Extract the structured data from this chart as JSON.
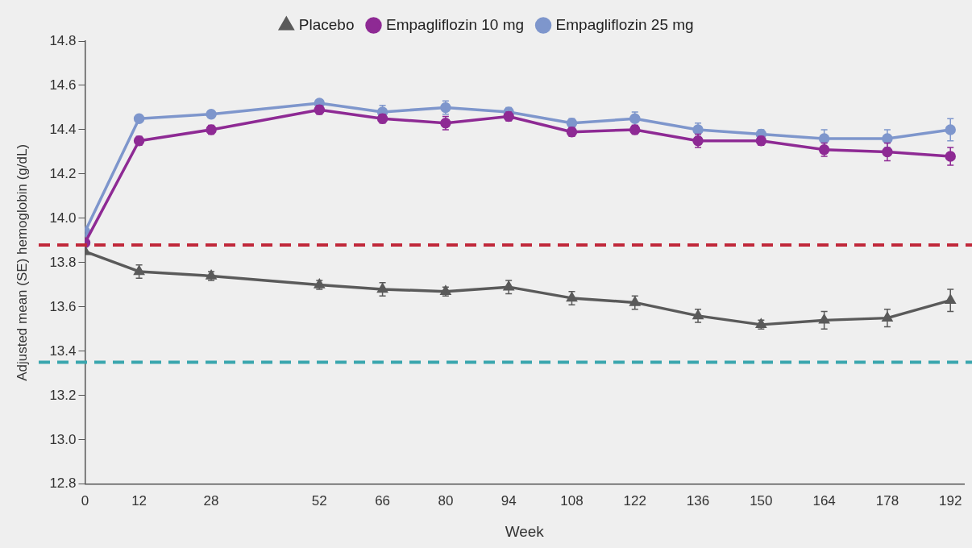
{
  "chart_data": {
    "type": "line",
    "xlabel": "Week",
    "ylabel": "Adjusted mean (SE) hemoglobin (g/dL)",
    "x": [
      0,
      12,
      28,
      52,
      66,
      80,
      94,
      108,
      122,
      136,
      150,
      164,
      178,
      192
    ],
    "xlim": [
      0,
      195
    ],
    "xticks": [
      0,
      12,
      28,
      52,
      66,
      80,
      94,
      108,
      122,
      136,
      150,
      164,
      178,
      192
    ],
    "ylim": [
      12.8,
      14.8
    ],
    "yticks": [
      12.8,
      {
        "value": 13,
        "label": "13.0"
      },
      13.2,
      13.4,
      13.6,
      13.8,
      {
        "value": 14,
        "label": "14.0"
      },
      14.2,
      14.4,
      14.6,
      14.8
    ],
    "series": [
      {
        "name": "Placebo",
        "color": "#5a5a5a",
        "marker": "triangle",
        "values": [
          13.85,
          13.76,
          13.74,
          13.7,
          13.68,
          13.67,
          13.69,
          13.64,
          13.62,
          13.56,
          13.52,
          13.54,
          13.55,
          13.63
        ],
        "errors": [
          null,
          0.03,
          0.02,
          0.02,
          0.03,
          0.02,
          0.03,
          0.03,
          0.03,
          0.03,
          0.02,
          0.04,
          0.04,
          0.05
        ]
      },
      {
        "name": "Empagliflozin 10 mg",
        "color": "#8e2a94",
        "marker": "circle",
        "values": [
          13.89,
          14.35,
          14.4,
          14.49,
          14.45,
          14.43,
          14.46,
          14.39,
          14.4,
          14.35,
          14.35,
          14.31,
          14.3,
          14.28
        ],
        "errors": [
          null,
          0.02,
          0.02,
          0.02,
          0.02,
          0.03,
          0.02,
          0.02,
          0.02,
          0.03,
          0.02,
          0.03,
          0.04,
          0.04
        ]
      },
      {
        "name": "Empagliflozin 25 mg",
        "color": "#7e96cc",
        "marker": "circle",
        "values": [
          13.94,
          14.45,
          14.47,
          14.52,
          14.48,
          14.5,
          14.48,
          14.43,
          14.45,
          14.4,
          14.38,
          14.36,
          14.36,
          14.4
        ],
        "errors": [
          null,
          null,
          null,
          null,
          0.03,
          0.03,
          0.02,
          0.02,
          0.03,
          0.03,
          0.02,
          0.04,
          0.04,
          0.05
        ]
      }
    ],
    "ref_lines": [
      {
        "axis": "y",
        "value": 13.88,
        "color": "#c0283a",
        "line_style": "dashed"
      },
      {
        "axis": "y",
        "value": 13.35,
        "color": "#3aa6ae",
        "line_style": "dashed"
      }
    ],
    "grid": false,
    "legend": "top",
    "line_style": "solid"
  }
}
